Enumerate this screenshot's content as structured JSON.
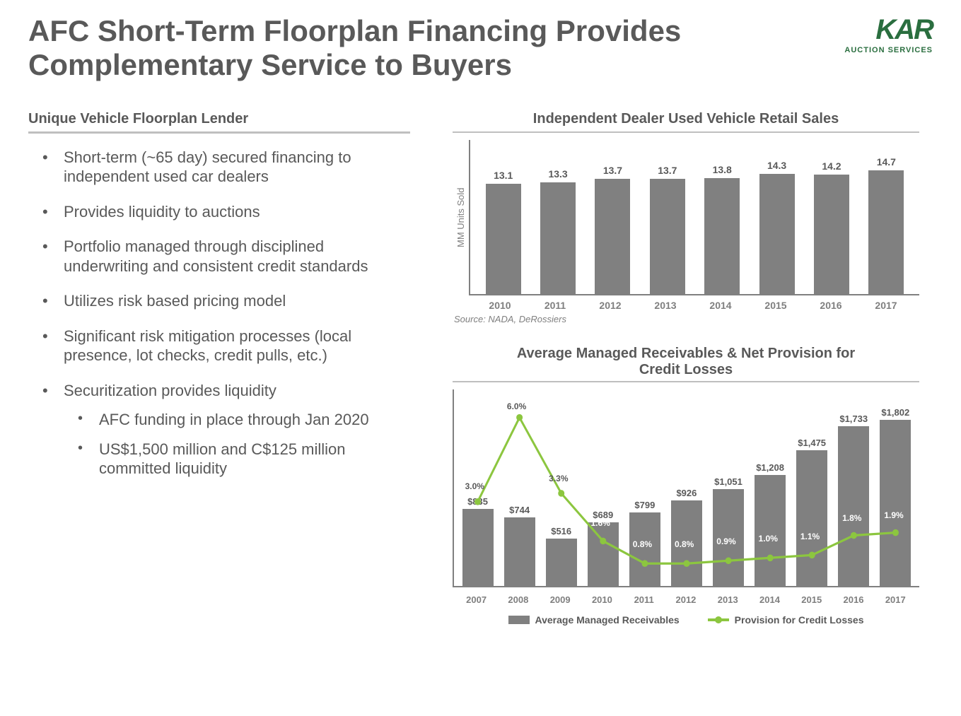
{
  "title": "AFC Short-Term Floorplan Financing Provides Complementary Service to Buyers",
  "logo": {
    "main": "KAR",
    "sub": "AUCTION SERVICES"
  },
  "left": {
    "heading": "Unique Vehicle Floorplan Lender",
    "bullets": [
      {
        "text": "Short-term (~65 day) secured financing to independent used car dealers"
      },
      {
        "text": "Provides liquidity to auctions"
      },
      {
        "text": "Portfolio managed through disciplined underwriting and consistent credit standards"
      },
      {
        "text": "Utilizes risk based pricing model"
      },
      {
        "text": "Significant risk mitigation processes (local presence, lot checks, credit pulls, etc.)"
      },
      {
        "text": "Securitization provides liquidity",
        "sub": [
          "AFC funding in place through Jan 2020",
          "US$1,500 million and C$125 million committed liquidity"
        ]
      }
    ]
  },
  "chart1": {
    "type": "bar",
    "title": "Independent Dealer Used Vehicle Retail Sales",
    "ylabel": "MM Units Sold",
    "categories": [
      "2010",
      "2011",
      "2012",
      "2013",
      "2014",
      "2015",
      "2016",
      "2017"
    ],
    "values": [
      13.1,
      13.3,
      13.7,
      13.7,
      13.8,
      14.3,
      14.2,
      14.7
    ],
    "value_labels": [
      "13.1",
      "13.3",
      "13.7",
      "13.7",
      "13.8",
      "14.3",
      "14.2",
      "14.7"
    ],
    "ylim": [
      0,
      16
    ],
    "bar_color": "#808080",
    "axis_color": "#808080",
    "label_color": "#595959",
    "tick_color": "#7f7f7f",
    "label_fontsize": 14,
    "source": "Source: NADA, DeRossiers"
  },
  "chart2": {
    "type": "bar+line",
    "title": "Average Managed Receivables & Net Provision for Credit Losses",
    "categories": [
      "2007",
      "2008",
      "2009",
      "2010",
      "2011",
      "2012",
      "2013",
      "2014",
      "2015",
      "2016",
      "2017"
    ],
    "bar_values": [
      835,
      744,
      516,
      689,
      799,
      926,
      1051,
      1208,
      1475,
      1733,
      1802
    ],
    "bar_labels": [
      "$835",
      "$744",
      "$516",
      "$689",
      "$799",
      "$926",
      "$1,051",
      "$1,208",
      "$1,475",
      "$1,733",
      "$1,802"
    ],
    "bar_ylim": [
      0,
      2000
    ],
    "bar_color": "#808080",
    "line_values": [
      3.0,
      6.0,
      3.3,
      1.6,
      0.8,
      0.8,
      0.9,
      1.0,
      1.1,
      1.8,
      1.9
    ],
    "line_labels": [
      "3.0%",
      "6.0%",
      "3.3%",
      "1.6%",
      "0.8%",
      "0.8%",
      "0.9%",
      "1.0%",
      "1.1%",
      "1.8%",
      "1.9%"
    ],
    "line_ylim": [
      0,
      7
    ],
    "line_color": "#8cc63f",
    "line_width": 3,
    "marker_size": 9,
    "axis_color": "#808080",
    "legend": {
      "bar": "Average Managed Receivables",
      "line": "Provision for Credit Losses"
    }
  }
}
